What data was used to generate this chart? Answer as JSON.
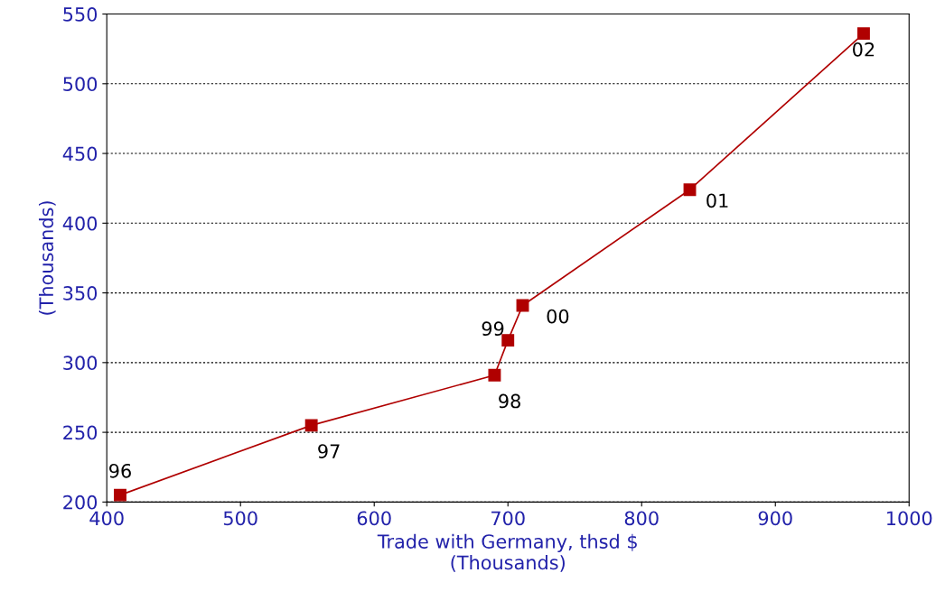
{
  "chart_data": {
    "type": "line",
    "xlabel": "Trade with Germany, thsd $\n(Thousands)",
    "ylabel": "(Thousands)",
    "series": [
      {
        "color": "#b00000",
        "x": [
          410,
          553,
          690,
          700,
          711,
          836,
          966
        ],
        "values": [
          205,
          255,
          291,
          316,
          341,
          424,
          536
        ]
      }
    ],
    "xlim": [
      400,
      1000
    ],
    "xticks": [
      400,
      500,
      600,
      700,
      800,
      900,
      1000
    ],
    "ylim": [
      200,
      550
    ],
    "yticks": [
      200,
      250,
      300,
      350,
      400,
      450,
      500,
      550
    ],
    "grid": "y",
    "marker": "square",
    "line_style": "solid",
    "annotations": [
      {
        "text": "96",
        "x": 410,
        "y": 205
      },
      {
        "text": "97",
        "x": 553,
        "y": 255
      },
      {
        "text": "98",
        "x": 690,
        "y": 291
      },
      {
        "text": "99",
        "x": 700,
        "y": 316
      },
      {
        "text": "00",
        "x": 711,
        "y": 341
      },
      {
        "text": "01",
        "x": 836,
        "y": 424
      },
      {
        "text": "02",
        "x": 966,
        "y": 536
      }
    ]
  }
}
